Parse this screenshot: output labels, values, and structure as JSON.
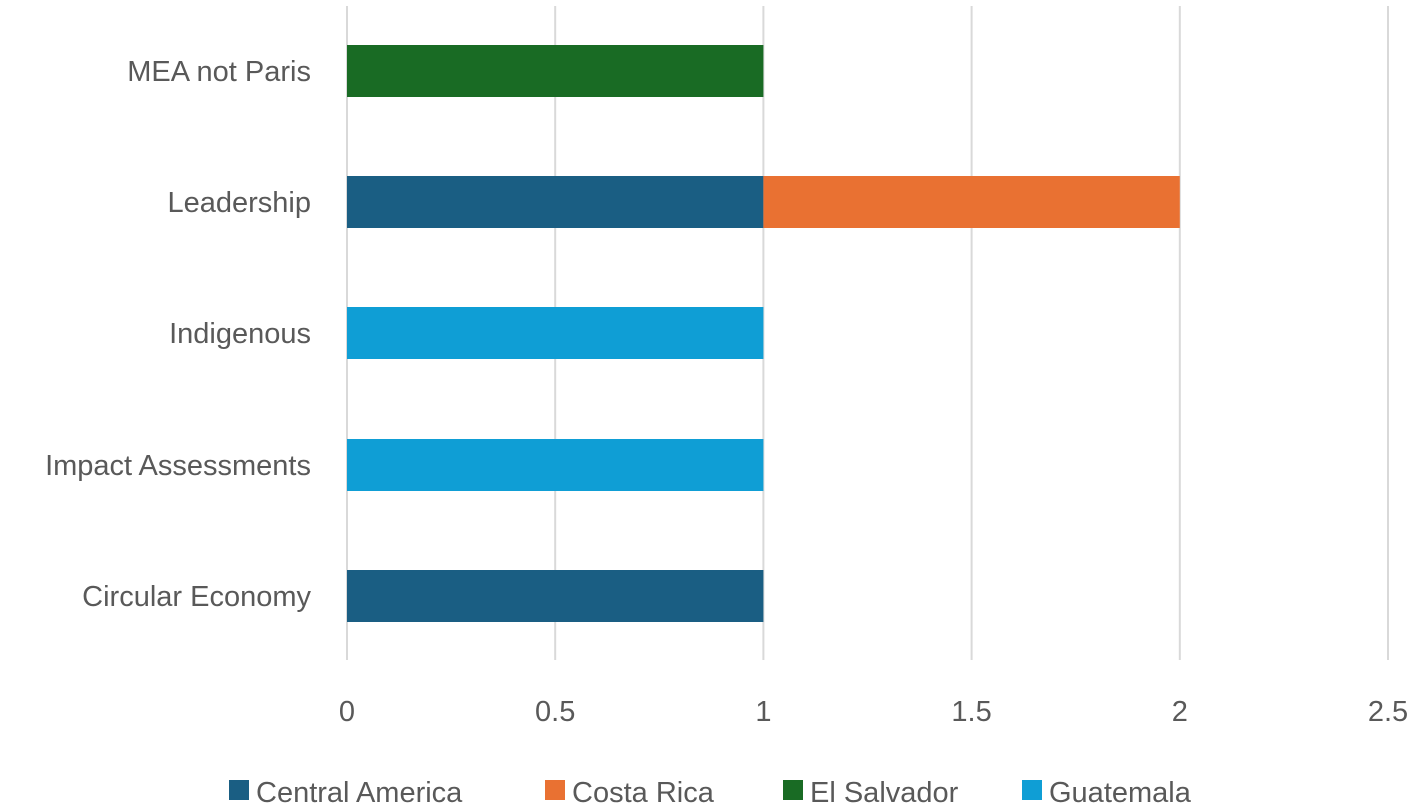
{
  "chart_data": {
    "type": "bar",
    "orientation": "horizontal",
    "stacked": true,
    "categories": [
      "Circular Economy",
      "Impact Assessments",
      "Indigenous",
      "Leadership",
      "MEA not Paris"
    ],
    "series": [
      {
        "name": "Central America",
        "color": "#1a5e83",
        "values": [
          1,
          0,
          0,
          1,
          0
        ]
      },
      {
        "name": "Costa Rica",
        "color": "#e97132",
        "values": [
          0,
          0,
          0,
          1,
          0
        ]
      },
      {
        "name": "El Salvador",
        "color": "#196b24",
        "values": [
          0,
          0,
          0,
          0,
          1
        ]
      },
      {
        "name": "Guatemala",
        "color": "#0f9ed5",
        "values": [
          0,
          1,
          1,
          0,
          0
        ]
      }
    ],
    "xlim": [
      0,
      2.5
    ],
    "xticks": [
      "0",
      "0.5",
      "1",
      "1.5",
      "2",
      "2.5"
    ],
    "xtick_values": [
      0,
      0.5,
      1,
      1.5,
      2,
      2.5
    ],
    "grid": "vertical",
    "legend_position": "bottom",
    "title": "",
    "xlabel": "",
    "ylabel": ""
  }
}
